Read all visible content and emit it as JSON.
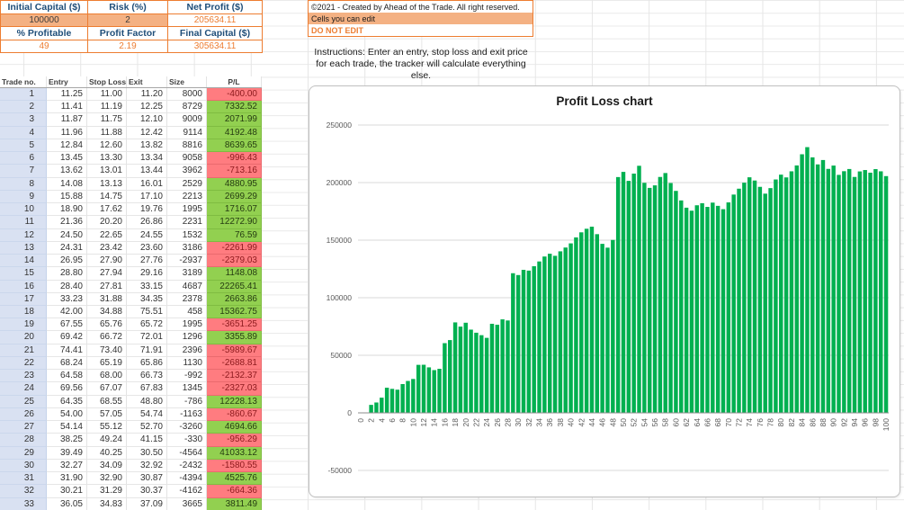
{
  "summary": {
    "row1": [
      {
        "label": "Initial Capital ($)",
        "value": "100000"
      },
      {
        "label": "Risk (%)",
        "value": "2"
      },
      {
        "label": "Net Profit ($)",
        "value": "205634.11"
      }
    ],
    "row2": [
      {
        "label": "% Profitable",
        "value": "49"
      },
      {
        "label": "Profit Factor",
        "value": "2.19"
      },
      {
        "label": "Final Capital ($)",
        "value": "305634.11"
      }
    ]
  },
  "info": {
    "copyright": "©2021 - Created by Ahead of the Trade. All right reserved.",
    "cells_you_can_edit": "Cells you can edit",
    "do_not_edit": "DO NOT EDIT",
    "instructions": "Instructions: Enter an entry, stop loss and exit price for each trade, the tracker will calculate everything else."
  },
  "table": {
    "headers": [
      "Trade no.",
      "Entry",
      "Stop Loss",
      "Exit",
      "Size",
      "P/L"
    ],
    "rows": [
      [
        1,
        "11.25",
        "11.00",
        "11.20",
        "8000",
        "-400.00"
      ],
      [
        2,
        "11.41",
        "11.19",
        "12.25",
        "8729",
        "7332.52"
      ],
      [
        3,
        "11.87",
        "11.75",
        "12.10",
        "9009",
        "2071.99"
      ],
      [
        4,
        "11.96",
        "11.88",
        "12.42",
        "9114",
        "4192.48"
      ],
      [
        5,
        "12.84",
        "12.60",
        "13.82",
        "8816",
        "8639.65"
      ],
      [
        6,
        "13.45",
        "13.30",
        "13.34",
        "9058",
        "-996.43"
      ],
      [
        7,
        "13.62",
        "13.01",
        "13.44",
        "3962",
        "-713.16"
      ],
      [
        8,
        "14.08",
        "13.13",
        "16.01",
        "2529",
        "4880.95"
      ],
      [
        9,
        "15.88",
        "14.75",
        "17.10",
        "2213",
        "2699.29"
      ],
      [
        10,
        "18.90",
        "17.62",
        "19.76",
        "1995",
        "1716.07"
      ],
      [
        11,
        "21.36",
        "20.20",
        "26.86",
        "2231",
        "12272.90"
      ],
      [
        12,
        "24.50",
        "22.65",
        "24.55",
        "1532",
        "76.59"
      ],
      [
        13,
        "24.31",
        "23.42",
        "23.60",
        "3186",
        "-2261.99"
      ],
      [
        14,
        "26.95",
        "27.90",
        "27.76",
        "-2937",
        "-2379.03"
      ],
      [
        15,
        "28.80",
        "27.94",
        "29.16",
        "3189",
        "1148.08"
      ],
      [
        16,
        "28.40",
        "27.81",
        "33.15",
        "4687",
        "22265.41"
      ],
      [
        17,
        "33.23",
        "31.88",
        "34.35",
        "2378",
        "2663.86"
      ],
      [
        18,
        "42.00",
        "34.88",
        "75.51",
        "458",
        "15362.75"
      ],
      [
        19,
        "67.55",
        "65.76",
        "65.72",
        "1995",
        "-3651.25"
      ],
      [
        20,
        "69.42",
        "66.72",
        "72.01",
        "1296",
        "3355.89"
      ],
      [
        21,
        "74.41",
        "73.40",
        "71.91",
        "2396",
        "-5989.67"
      ],
      [
        22,
        "68.24",
        "65.19",
        "65.86",
        "1130",
        "-2688.81"
      ],
      [
        23,
        "64.58",
        "68.00",
        "66.73",
        "-992",
        "-2132.37"
      ],
      [
        24,
        "69.56",
        "67.07",
        "67.83",
        "1345",
        "-2327.03"
      ],
      [
        25,
        "64.35",
        "68.55",
        "48.80",
        "-786",
        "12228.13"
      ],
      [
        26,
        "54.00",
        "57.05",
        "54.74",
        "-1163",
        "-860.67"
      ],
      [
        27,
        "54.14",
        "55.12",
        "52.70",
        "-3260",
        "4694.66"
      ],
      [
        28,
        "38.25",
        "49.24",
        "41.15",
        "-330",
        "-956.29"
      ],
      [
        29,
        "39.49",
        "40.25",
        "30.50",
        "-4564",
        "41033.12"
      ],
      [
        30,
        "32.27",
        "34.09",
        "32.92",
        "-2432",
        "-1580.55"
      ],
      [
        31,
        "31.90",
        "32.90",
        "30.87",
        "-4394",
        "4525.76"
      ],
      [
        32,
        "30.21",
        "31.29",
        "30.37",
        "-4162",
        "-664.36"
      ],
      [
        33,
        "36.05",
        "34.83",
        "37.09",
        "3665",
        "3811.49"
      ]
    ]
  },
  "chart_data": {
    "type": "bar",
    "title": "Profit Loss chart",
    "xlabel": "",
    "ylabel": "",
    "ylim": [
      -50000,
      250000
    ],
    "ytick_step": 50000,
    "x_label_interval": 2,
    "grid": true,
    "bar_color": "#00B050",
    "categories": [
      0,
      1,
      2,
      3,
      4,
      5,
      6,
      7,
      8,
      9,
      10,
      11,
      12,
      13,
      14,
      15,
      16,
      17,
      18,
      19,
      20,
      21,
      22,
      23,
      24,
      25,
      26,
      27,
      28,
      29,
      30,
      31,
      32,
      33,
      34,
      35,
      36,
      37,
      38,
      39,
      40,
      41,
      42,
      43,
      44,
      45,
      46,
      47,
      48,
      49,
      50,
      51,
      52,
      53,
      54,
      55,
      56,
      57,
      58,
      59,
      60,
      61,
      62,
      63,
      64,
      65,
      66,
      67,
      68,
      69,
      70,
      71,
      72,
      73,
      74,
      75,
      76,
      77,
      78,
      79,
      80,
      81,
      82,
      83,
      84,
      85,
      86,
      87,
      88,
      89,
      90,
      91,
      92,
      93,
      94,
      95,
      96,
      97,
      98,
      99,
      100
    ],
    "values": [
      0,
      -400,
      6932.52,
      9004.51,
      13196.99,
      21836.64,
      20840.21,
      20127.05,
      25008,
      27707.29,
      29423.36,
      41696.26,
      41772.85,
      39510.86,
      37131.83,
      38279.91,
      60545.32,
      63209.18,
      78571.93,
      74920.68,
      78276.57,
      72286.9,
      69598.09,
      67465.72,
      65138.69,
      77366.82,
      76506.15,
      81200.81,
      80244.52,
      121277.64,
      119697.09,
      124222.85,
      123558.49,
      127369.98,
      131500,
      135800,
      138200,
      136400,
      140300,
      143600,
      147200,
      152400,
      156800,
      159900,
      161700,
      155200,
      146800,
      143500,
      150200,
      204800,
      209300,
      201500,
      207800,
      214600,
      199800,
      195400,
      197600,
      204900,
      208300,
      199600,
      192800,
      184500,
      178200,
      175600,
      180300,
      182100,
      178900,
      182600,
      179800,
      176900,
      182800,
      189600,
      194700,
      199900,
      204600,
      201800,
      196300,
      190400,
      195200,
      202700,
      206900,
      204500,
      209800,
      214900,
      224600,
      230800,
      221900,
      215800,
      219600,
      211900,
      214800,
      206700,
      209900,
      211800,
      204900,
      209700,
      210900,
      208600,
      211700,
      209800,
      205634.11
    ]
  },
  "colors": {
    "accent_orange": "#ED7D31",
    "editable_bg": "#F4B183",
    "header_navy": "#1F4E79",
    "trade_no_bg": "#D9E1F2",
    "win_bg": "#92D050",
    "loss_bg": "#FF7C80",
    "chart_green": "#00B050"
  }
}
